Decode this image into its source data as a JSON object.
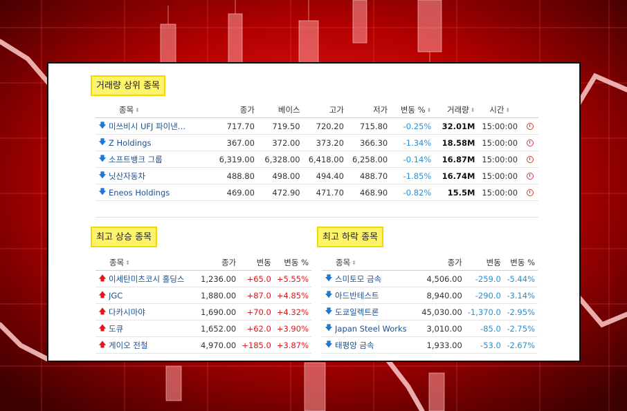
{
  "colors": {
    "up": "#e0161b",
    "down": "#2a8fd0",
    "label_bg": "#fff36a",
    "link": "#1a4f8f"
  },
  "volume": {
    "title": "거래량 상위 종목",
    "headers": [
      "종목",
      "종가",
      "베이스",
      "고가",
      "저가",
      "변동 %",
      "거래량",
      "시간"
    ],
    "rows": [
      {
        "name": "미쓰비시 UFJ 파이낸셜 그룹",
        "close": "717.70",
        "base": "719.50",
        "high": "720.20",
        "low": "715.80",
        "chg_pct": "-0.25%",
        "vol": "32.01M",
        "time": "15:00:00",
        "dir": "down"
      },
      {
        "name": "Z Holdings",
        "close": "367.00",
        "base": "372.00",
        "high": "373.20",
        "low": "366.30",
        "chg_pct": "-1.34%",
        "vol": "18.58M",
        "time": "15:00:00",
        "dir": "down"
      },
      {
        "name": "소프트뱅크 그룹",
        "close": "6,319.00",
        "base": "6,328.00",
        "high": "6,418.00",
        "low": "6,258.00",
        "chg_pct": "-0.14%",
        "vol": "16.87M",
        "time": "15:00:00",
        "dir": "down"
      },
      {
        "name": "닛산자동차",
        "close": "488.80",
        "base": "498.00",
        "high": "494.40",
        "low": "488.70",
        "chg_pct": "-1.85%",
        "vol": "16.74M",
        "time": "15:00:00",
        "dir": "down"
      },
      {
        "name": "Eneos Holdings",
        "close": "469.00",
        "base": "472.90",
        "high": "471.70",
        "low": "468.90",
        "chg_pct": "-0.82%",
        "vol": "15.5M",
        "time": "15:00:00",
        "dir": "down"
      }
    ]
  },
  "gainers": {
    "title": "최고 상승 종목",
    "headers": [
      "종목",
      "종가",
      "변동",
      "변동 %"
    ],
    "rows": [
      {
        "name": "이세탄미츠코시 홀딩스",
        "close": "1,236.00",
        "chg": "+65.0",
        "chg_pct": "+5.55%"
      },
      {
        "name": "JGC",
        "close": "1,880.00",
        "chg": "+87.0",
        "chg_pct": "+4.85%"
      },
      {
        "name": "다카시마야",
        "close": "1,690.00",
        "chg": "+70.0",
        "chg_pct": "+4.32%"
      },
      {
        "name": "도큐",
        "close": "1,652.00",
        "chg": "+62.0",
        "chg_pct": "+3.90%"
      },
      {
        "name": "게이오 전철",
        "close": "4,970.00",
        "chg": "+185.0",
        "chg_pct": "+3.87%"
      }
    ]
  },
  "losers": {
    "title": "최고 하락 종목",
    "headers": [
      "종목",
      "종가",
      "변동",
      "변동 %"
    ],
    "rows": [
      {
        "name": "스미토모 금속",
        "close": "4,506.00",
        "chg": "-259.0",
        "chg_pct": "-5.44%"
      },
      {
        "name": "아드반테스트",
        "close": "8,940.00",
        "chg": "-290.0",
        "chg_pct": "-3.14%"
      },
      {
        "name": "도쿄일렉트론",
        "close": "45,030.00",
        "chg": "-1,370.0",
        "chg_pct": "-2.95%"
      },
      {
        "name": "Japan Steel Works",
        "close": "3,010.00",
        "chg": "-85.0",
        "chg_pct": "-2.75%"
      },
      {
        "name": "태평양 금속",
        "close": "1,933.00",
        "chg": "-53.0",
        "chg_pct": "-2.67%"
      }
    ]
  }
}
